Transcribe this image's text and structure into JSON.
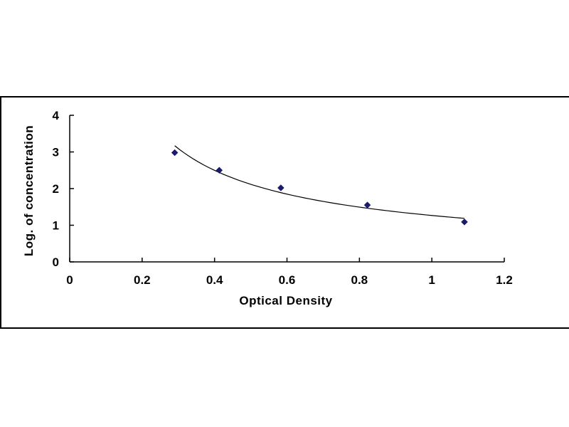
{
  "chart_data": {
    "type": "scatter",
    "title": "",
    "xlabel": "Optical Density",
    "ylabel": "Log. of concentration",
    "xlim": [
      0,
      1.2
    ],
    "ylim": [
      0,
      4
    ],
    "x_ticks": [
      "0",
      "0.2",
      "0.4",
      "0.6",
      "0.8",
      "1",
      "1.2"
    ],
    "y_ticks": [
      "0",
      "1",
      "2",
      "3",
      "4"
    ],
    "grid": false,
    "legend": "none",
    "series": [
      {
        "x": [
          0.29,
          0.413,
          0.583,
          0.822,
          1.09
        ],
        "y": [
          2.98,
          2.5,
          2.02,
          1.55,
          1.09
        ],
        "marker": "diamond",
        "trendline": "power",
        "color": "#1a1a6e"
      }
    ]
  }
}
